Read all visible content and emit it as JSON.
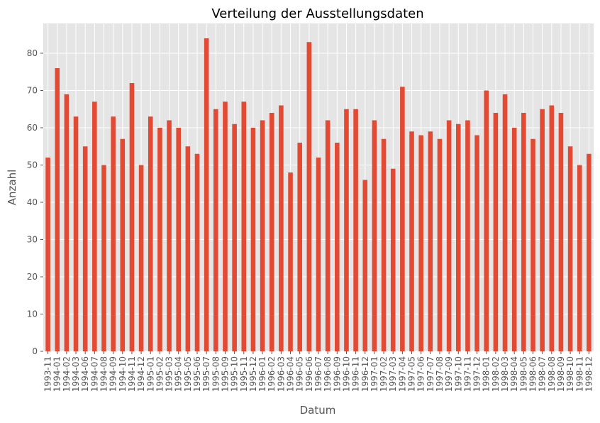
{
  "chart_data": {
    "type": "bar",
    "title": "Verteilung der Ausstellungsdaten",
    "xlabel": "Datum",
    "ylabel": "Anzahl",
    "ylim": [
      0,
      88
    ],
    "yticks": [
      0,
      10,
      20,
      30,
      40,
      50,
      60,
      70,
      80
    ],
    "grid": true,
    "legend": "none",
    "bar_color": "#E24A33",
    "background_color": "#E5E5E5",
    "grid_color": "#FFFFFF",
    "categories": [
      "1993-11",
      "1994-01",
      "1994-02",
      "1994-03",
      "1994-06",
      "1994-07",
      "1994-08",
      "1994-09",
      "1994-10",
      "1994-11",
      "1994-12",
      "1995-01",
      "1995-02",
      "1995-03",
      "1995-04",
      "1995-05",
      "1995-06",
      "1995-07",
      "1995-08",
      "1995-09",
      "1995-10",
      "1995-11",
      "1995-12",
      "1996-01",
      "1996-02",
      "1996-03",
      "1996-04",
      "1996-05",
      "1996-06",
      "1996-07",
      "1996-08",
      "1996-09",
      "1996-10",
      "1996-11",
      "1996-12",
      "1997-01",
      "1997-02",
      "1997-03",
      "1997-04",
      "1997-05",
      "1997-06",
      "1997-07",
      "1997-08",
      "1997-09",
      "1997-10",
      "1997-11",
      "1997-12",
      "1998-01",
      "1998-02",
      "1998-03",
      "1998-04",
      "1998-05",
      "1998-06",
      "1998-07",
      "1998-08",
      "1998-09",
      "1998-10",
      "1998-11",
      "1998-12"
    ],
    "values": [
      52,
      76,
      69,
      63,
      55,
      67,
      50,
      63,
      57,
      72,
      50,
      63,
      60,
      62,
      60,
      55,
      53,
      84,
      65,
      67,
      61,
      67,
      60,
      62,
      64,
      66,
      48,
      56,
      83,
      52,
      62,
      56,
      65,
      65,
      46,
      62,
      57,
      49,
      71,
      59,
      58,
      59,
      57,
      62,
      61,
      62,
      58,
      70,
      64,
      69,
      60,
      64,
      57,
      65,
      66,
      64,
      55,
      50,
      53
    ]
  }
}
